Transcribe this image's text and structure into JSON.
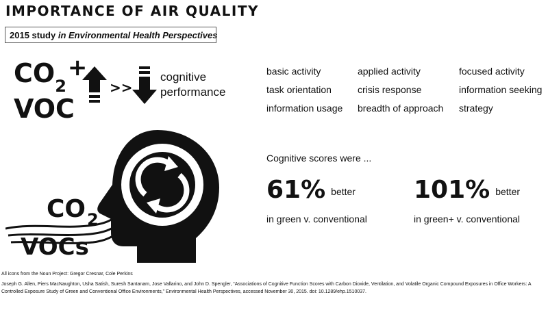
{
  "title": "IMPORTANCE OF AIR QUALITY",
  "study": {
    "year_label": "2015 study",
    "journal": "in Environmental Health Perspectives"
  },
  "formula": {
    "co": "CO",
    "sub": "2",
    "plus": "+",
    "voc": "VOC",
    "relation": ">>",
    "result_line1": "cognitive",
    "result_line2": "performance"
  },
  "metrics": [
    "basic activity",
    "applied activity",
    "focused activity",
    "task orientation",
    "crisis response",
    "information seeking",
    "information usage",
    "breadth of approach",
    "strategy"
  ],
  "scores": {
    "intro": "Cognitive scores were ...",
    "items": [
      {
        "percent": "61%",
        "word": "better",
        "comparison": "in green v. conventional"
      },
      {
        "percent": "101%",
        "word": "better",
        "comparison": "in green+ v. conventional"
      }
    ]
  },
  "illustration": {
    "co": "CO",
    "sub": "2",
    "vocs": "VOCs",
    "icons": [
      "head-icon",
      "refresh-cycle-icon",
      "air-flow-icon",
      "up-arrow-icon",
      "down-arrow-icon"
    ]
  },
  "credit": "All icons from the Noun Project: Gregor Cresnar, Cole Perkins",
  "citation": "Joseph G. Allen, Piers MacNaughton, Usha Satish, Suresh Santanam, Jose Vallarino, and John D. Spengler, “Associations of Cognitive Function Scores with Carbon Dioxide, Ventilation, and Volatile Organic Compound Exposures in Office Workers: A Controlled Exposure Study of Green and Conventional Office Environments,” Environmental Health Perspectives, accessed November 30, 2015. doi: 10.1289/ehp.1510037.",
  "colors": {
    "ink": "#111111",
    "background": "#ffffff",
    "border": "#555555"
  }
}
